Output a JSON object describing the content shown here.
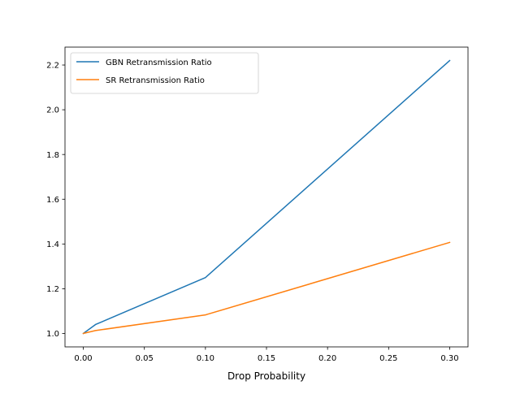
{
  "chart_data": {
    "type": "line",
    "xlabel": "Drop Probability",
    "ylabel": "",
    "xlim": [
      -0.015,
      0.315
    ],
    "ylim": [
      0.94,
      2.28
    ],
    "x_ticks": [
      0.0,
      0.05,
      0.1,
      0.15,
      0.2,
      0.25,
      0.3
    ],
    "x_tick_labels": [
      "0.00",
      "0.05",
      "0.10",
      "0.15",
      "0.20",
      "0.25",
      "0.30"
    ],
    "y_ticks": [
      1.0,
      1.2,
      1.4,
      1.6,
      1.8,
      2.0,
      2.2
    ],
    "y_tick_labels": [
      "1.0",
      "1.2",
      "1.4",
      "1.6",
      "1.8",
      "2.0",
      "2.2"
    ],
    "grid": false,
    "legend_position": "top-left",
    "x": [
      0.0,
      0.01,
      0.1,
      0.3
    ],
    "series": [
      {
        "name": "GBN Retransmission Ratio",
        "color": "#1f77b4",
        "values": [
          1.0,
          1.04,
          1.25,
          2.22
        ]
      },
      {
        "name": "SR Retransmission Ratio",
        "color": "#ff7f0e",
        "values": [
          1.0,
          1.013,
          1.083,
          1.407
        ]
      }
    ]
  }
}
